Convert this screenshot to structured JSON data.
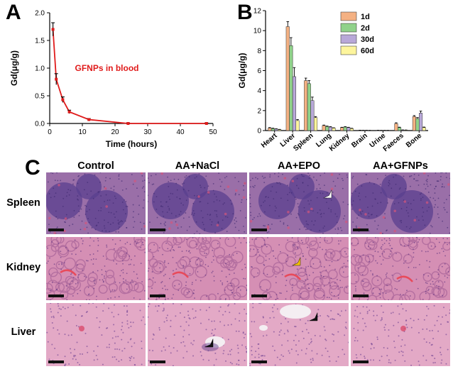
{
  "panels": {
    "a": "A",
    "b": "B",
    "c": "C"
  },
  "chart_data": [
    {
      "type": "line",
      "title": "",
      "annotation": "GFNPs in blood",
      "xlabel": "Time (hours)",
      "ylabel": "Gd(μg/g)",
      "xlim": [
        0,
        50
      ],
      "ylim": [
        0,
        2.0
      ],
      "xticks": [
        0,
        10,
        20,
        30,
        40,
        50
      ],
      "yticks": [
        0.0,
        0.5,
        1.0,
        1.5,
        2.0
      ],
      "x": [
        1,
        2,
        4,
        6,
        12,
        24,
        48
      ],
      "y": [
        1.7,
        0.8,
        0.43,
        0.21,
        0.07,
        0.0,
        0.0
      ],
      "error": [
        0.12,
        0.1,
        0.05,
        0.03,
        0.02,
        0.01,
        0.01
      ],
      "color": "#e01b1b"
    },
    {
      "type": "bar",
      "title": "",
      "xlabel": "",
      "ylabel": "Gd(μg/g)",
      "ylim": [
        0,
        12
      ],
      "yticks": [
        0,
        2,
        4,
        6,
        8,
        10,
        12
      ],
      "categories": [
        "Heart",
        "Liver",
        "Spleen",
        "Lung",
        "Kidney",
        "Brain",
        "Urine",
        "Faeces",
        "Bone"
      ],
      "legend_position": "top-right",
      "series": [
        {
          "name": "1d",
          "color": "#f4b183",
          "values": [
            0.25,
            10.4,
            5.0,
            0.5,
            0.3,
            0.03,
            0.02,
            0.7,
            1.4
          ],
          "errors": [
            0.05,
            0.5,
            0.25,
            0.05,
            0.03,
            0.01,
            0.01,
            0.08,
            0.1
          ]
        },
        {
          "name": "2d",
          "color": "#90d28a",
          "values": [
            0.2,
            8.5,
            4.7,
            0.4,
            0.35,
            0.02,
            0.01,
            0.3,
            1.2
          ],
          "errors": [
            0.04,
            0.8,
            0.3,
            0.05,
            0.04,
            0.01,
            0.01,
            0.04,
            0.1
          ]
        },
        {
          "name": "30d",
          "color": "#b8a8d8",
          "values": [
            0.15,
            5.4,
            3.0,
            0.35,
            0.3,
            0.02,
            0.01,
            0.05,
            1.75
          ],
          "errors": [
            0.03,
            0.9,
            0.35,
            0.04,
            0.03,
            0.01,
            0.01,
            0.02,
            0.2
          ]
        },
        {
          "name": "60d",
          "color": "#fdf59d",
          "values": [
            0.1,
            1.0,
            1.3,
            0.25,
            0.2,
            0.01,
            0.01,
            0.05,
            0.3
          ],
          "errors": [
            0.02,
            0.1,
            0.1,
            0.03,
            0.03,
            0.01,
            0.01,
            0.01,
            0.05
          ]
        }
      ]
    }
  ],
  "histology": {
    "columns": [
      "Control",
      "AA+NaCl",
      "AA+EPO",
      "AA+GFNPs"
    ],
    "rows": [
      "Spleen",
      "Kidney",
      "Liver"
    ]
  }
}
